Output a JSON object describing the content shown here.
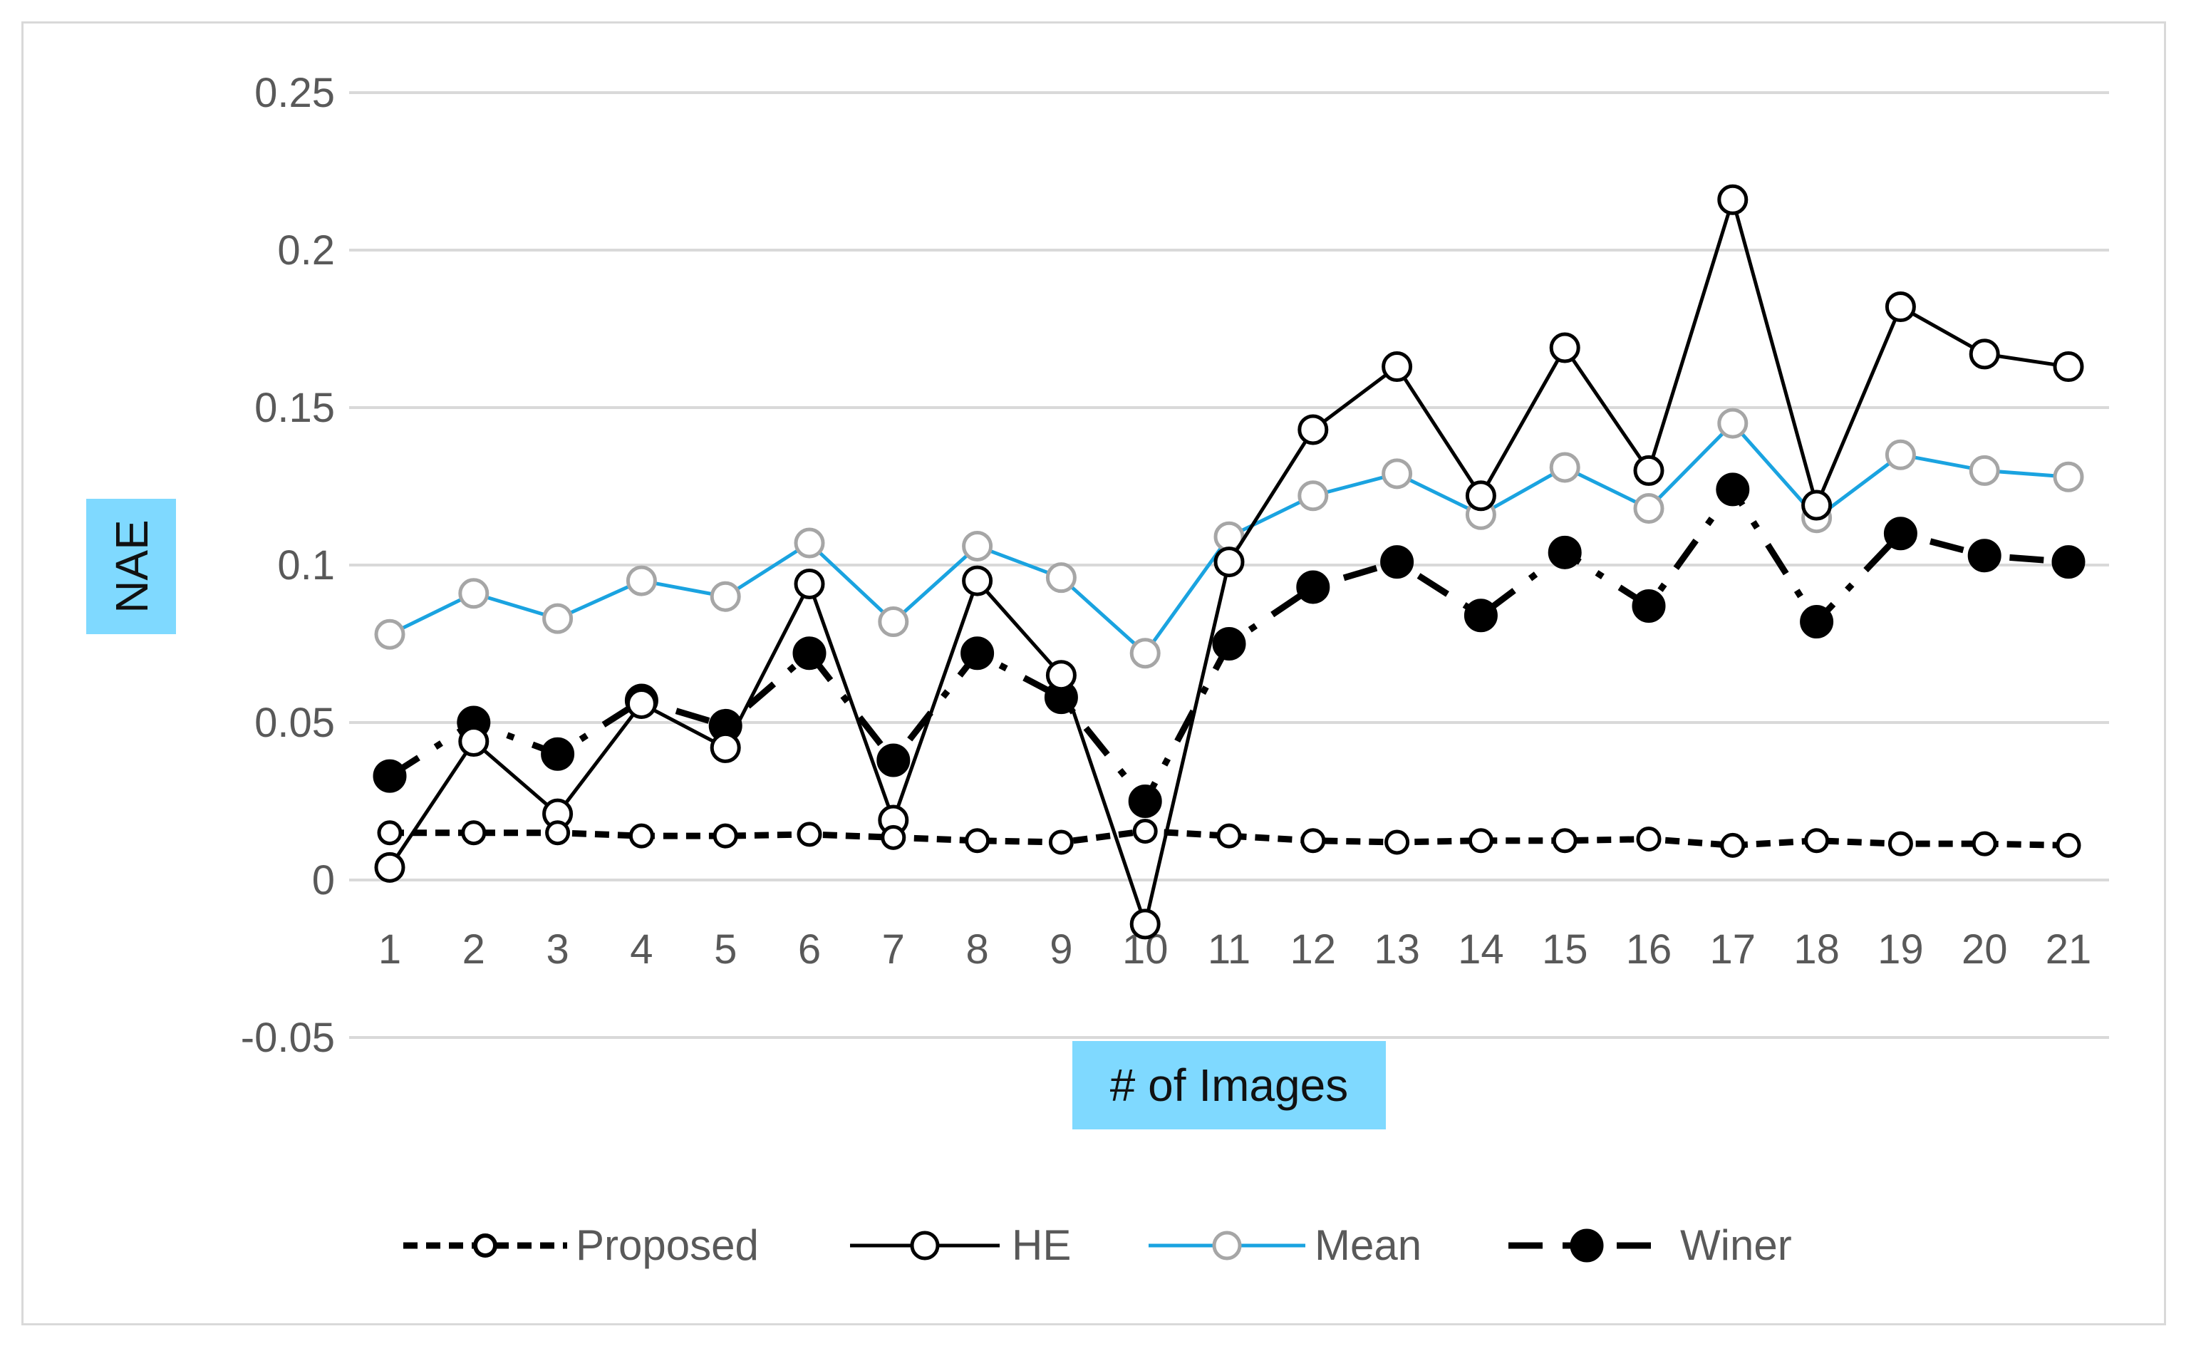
{
  "chart_data": {
    "type": "line",
    "title": "",
    "xlabel": "# of Images",
    "ylabel": "NAE",
    "categories": [
      "1",
      "2",
      "3",
      "4",
      "5",
      "6",
      "7",
      "8",
      "9",
      "10",
      "11",
      "12",
      "13",
      "14",
      "15",
      "16",
      "17",
      "18",
      "19",
      "20",
      "21"
    ],
    "ylim": [
      -0.05,
      0.25
    ],
    "yticks": [
      "0.25",
      "0.2",
      "0.15",
      "0.1",
      "0.05",
      "0",
      "-0.05"
    ],
    "grid": true,
    "legend_position": "bottom",
    "series": [
      {
        "name": "Proposed",
        "color": "#000000",
        "line_style": "short-dash",
        "marker": "open-circle-small",
        "values": [
          0.015,
          0.015,
          0.015,
          0.014,
          0.014,
          0.0145,
          0.0135,
          0.0125,
          0.012,
          0.0155,
          0.014,
          0.0125,
          0.012,
          0.0125,
          0.0125,
          0.013,
          0.011,
          0.0125,
          0.0115,
          0.0115,
          0.011
        ]
      },
      {
        "name": "HE",
        "color": "#000000",
        "line_style": "solid",
        "marker": "open-circle",
        "values": [
          0.004,
          0.044,
          0.021,
          0.056,
          0.042,
          0.094,
          0.019,
          0.095,
          0.065,
          -0.014,
          0.101,
          0.143,
          0.163,
          0.122,
          0.169,
          0.13,
          0.216,
          0.119,
          0.182,
          0.167,
          0.163
        ]
      },
      {
        "name": "Mean",
        "color": "#1aa3e0",
        "line_style": "solid",
        "marker": "gray-open-circle",
        "values": [
          0.078,
          0.091,
          0.083,
          0.095,
          0.09,
          0.107,
          0.082,
          0.106,
          0.096,
          0.072,
          0.109,
          0.122,
          0.129,
          0.116,
          0.131,
          0.118,
          0.145,
          0.115,
          0.135,
          0.13,
          0.128
        ]
      },
      {
        "name": "Winer",
        "color": "#000000",
        "line_style": "long-dash-dot",
        "marker": "filled-circle",
        "values": [
          0.033,
          0.05,
          0.04,
          0.057,
          0.049,
          0.072,
          0.038,
          0.072,
          0.058,
          0.025,
          0.075,
          0.093,
          0.101,
          0.084,
          0.104,
          0.087,
          0.124,
          0.082,
          0.11,
          0.103,
          0.101
        ]
      }
    ]
  }
}
